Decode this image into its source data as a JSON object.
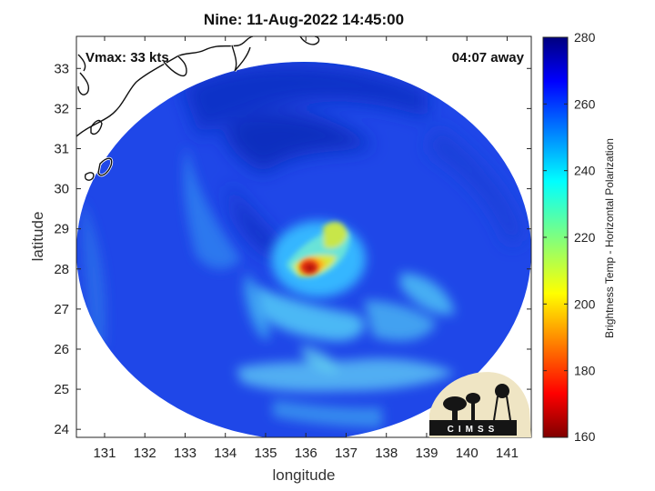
{
  "title": "Nine: 11-Aug-2022 14:45:00",
  "vmax_text": "Vmax: 33 kts",
  "away_text": "04:07 away",
  "map": {
    "xlabel": "longitude",
    "ylabel": "latitude",
    "lon_range": [
      130.3,
      141.6
    ],
    "lat_range": [
      23.8,
      33.8
    ],
    "lon_ticks": [
      131,
      132,
      133,
      134,
      135,
      136,
      137,
      138,
      139,
      140,
      141
    ],
    "lat_ticks": [
      24,
      25,
      26,
      27,
      28,
      29,
      30,
      31,
      32,
      33
    ],
    "swath_center": [
      136.0,
      28.75
    ],
    "storm_center": [
      136.1,
      28.05
    ],
    "grid": false
  },
  "colorbar": {
    "label": "Brightness Temp - Horizontal Polarization",
    "min": 160,
    "max": 280,
    "ticks": [
      280,
      260,
      240,
      220,
      200,
      180,
      160
    ],
    "colormap": "jet"
  },
  "logo": {
    "text": "CIMSS"
  },
  "colors": {
    "swath_base": "#1f47e8",
    "coastline": "#ffffff",
    "cold_core": "#b00a0a"
  }
}
